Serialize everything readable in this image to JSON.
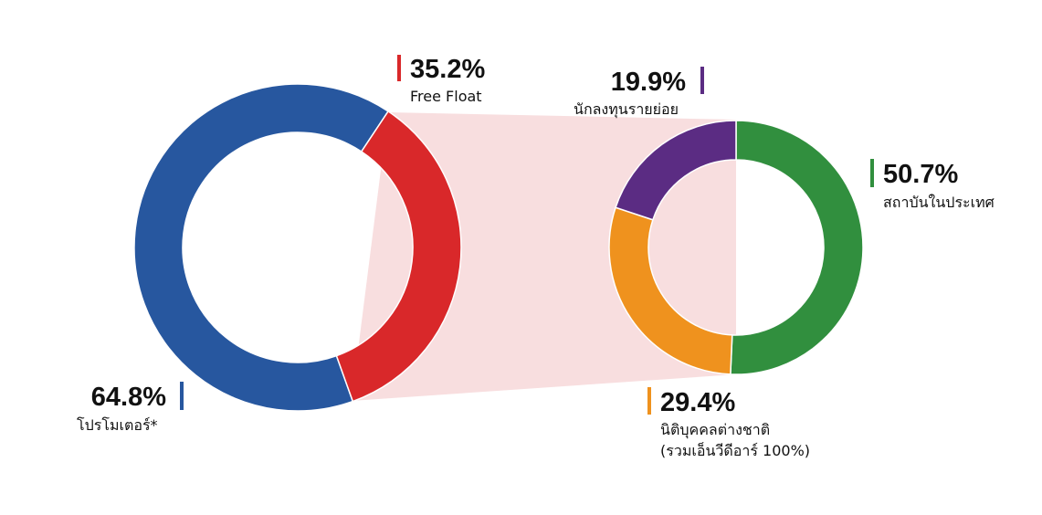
{
  "chart_data": [
    {
      "type": "pie",
      "chart_id": "main",
      "slices": [
        {
          "value": 64.8,
          "value_label": "64.8%",
          "label": "โปรโมเตอร์*",
          "color": "#27579f"
        },
        {
          "value": 35.2,
          "value_label": "35.2%",
          "label": "Free Float",
          "color": "#d9282a"
        }
      ]
    },
    {
      "type": "pie",
      "chart_id": "free-float-breakdown",
      "slices": [
        {
          "value": 50.7,
          "value_label": "50.7%",
          "label": "สถาบันในประเทศ",
          "color": "#318f3e"
        },
        {
          "value": 29.4,
          "value_label": "29.4%",
          "label": "นิติบุคคลต่างชาติ",
          "label_line2": "(รวมเอ็นวีดีอาร์ 100%)",
          "color": "#ef921e"
        },
        {
          "value": 19.9,
          "value_label": "19.9%",
          "label": "นักลงทุนรายย่อย",
          "color": "#5b2c83"
        }
      ]
    }
  ],
  "colors": {
    "connector_fill": "#f8dedf",
    "background": "#ffffff"
  }
}
